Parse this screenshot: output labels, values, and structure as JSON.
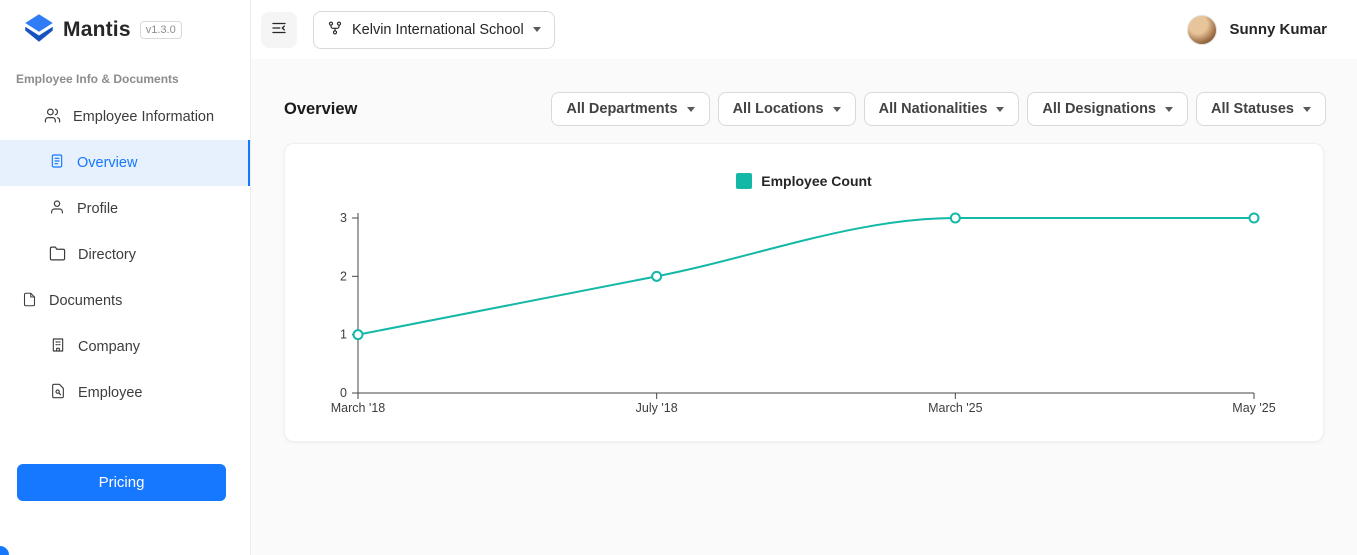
{
  "app": {
    "name": "Mantis",
    "version": "v1.3.0"
  },
  "sidebar": {
    "section_label": "Employee Info & Documents",
    "items": [
      {
        "label": "Employee Information"
      },
      {
        "label": "Overview"
      },
      {
        "label": "Profile"
      },
      {
        "label": "Directory"
      },
      {
        "label": "Documents"
      },
      {
        "label": "Company"
      },
      {
        "label": "Employee"
      }
    ],
    "pricing_label": "Pricing"
  },
  "header": {
    "school_selector": "Kelvin International School",
    "user_name": "Sunny Kumar"
  },
  "main": {
    "title": "Overview",
    "filters": [
      "All Departments",
      "All Locations",
      "All Nationalities",
      "All Designations",
      "All Statuses"
    ]
  },
  "colors": {
    "accent_blue": "#1677ff",
    "active_item_bg": "#e6f1fd",
    "chart_teal": "#14b8a6"
  },
  "chart_data": {
    "type": "line",
    "title": "",
    "categories": [
      "March '18",
      "July '18",
      "March '25",
      "May '25"
    ],
    "series": [
      {
        "name": "Employee Count",
        "values": [
          1,
          2,
          3,
          3
        ]
      }
    ],
    "ylim": [
      0,
      3
    ],
    "yticks": [
      0,
      1,
      2,
      3
    ],
    "color": "#14b8a6",
    "grid": false,
    "legend_position": "top-center",
    "marker": "open-circle"
  }
}
